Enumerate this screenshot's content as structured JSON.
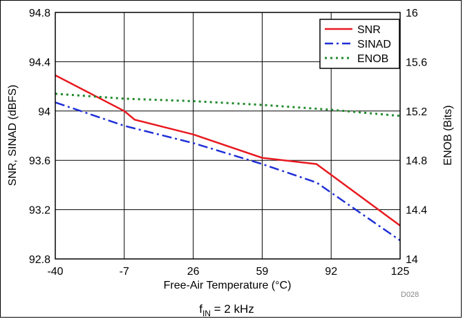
{
  "chart_data": {
    "type": "line",
    "x": [
      -40,
      -7,
      26,
      59,
      92,
      125
    ],
    "xlabel": "Free-Air Temperature (°C)",
    "xticks": [
      "-40",
      "-7",
      "26",
      "59",
      "92",
      "125"
    ],
    "xlim": [
      -40,
      125
    ],
    "ylabel": "SNR, SINAD (dBFS)",
    "ylim": [
      92.8,
      94.8
    ],
    "yticks": [
      "92.8",
      "93.2",
      "93.6",
      "94",
      "94.4",
      "94.8"
    ],
    "y2label": "ENOB (Bits)",
    "y2lim": [
      14,
      16
    ],
    "y2ticks": [
      "14",
      "14.4",
      "14.8",
      "15.2",
      "15.6",
      "16"
    ],
    "grid": true,
    "legend_position": "top-right",
    "series": [
      {
        "name": "SNR",
        "axis": "left",
        "color": "#e8191f",
        "style": "solid",
        "x": [
          -40,
          -7,
          -2,
          26,
          59,
          85,
          125
        ],
        "y": [
          94.29,
          94.0,
          93.93,
          93.81,
          93.62,
          93.57,
          93.07
        ]
      },
      {
        "name": "SINAD",
        "axis": "left",
        "color": "#1f2fd6",
        "style": "dashdot",
        "x": [
          -40,
          -7,
          26,
          59,
          85,
          125
        ],
        "y": [
          94.07,
          93.88,
          93.74,
          93.57,
          93.42,
          92.95
        ]
      },
      {
        "name": "ENOB",
        "axis": "right",
        "color": "#1f8a2a",
        "style": "dotted",
        "x": [
          -40,
          -7,
          26,
          59,
          92,
          125
        ],
        "y": [
          15.34,
          15.3,
          15.28,
          15.25,
          15.21,
          15.16
        ]
      }
    ]
  },
  "figure_id": "D028",
  "caption": {
    "main": "f",
    "sub": "IN",
    "rest": " = 2 kHz"
  }
}
